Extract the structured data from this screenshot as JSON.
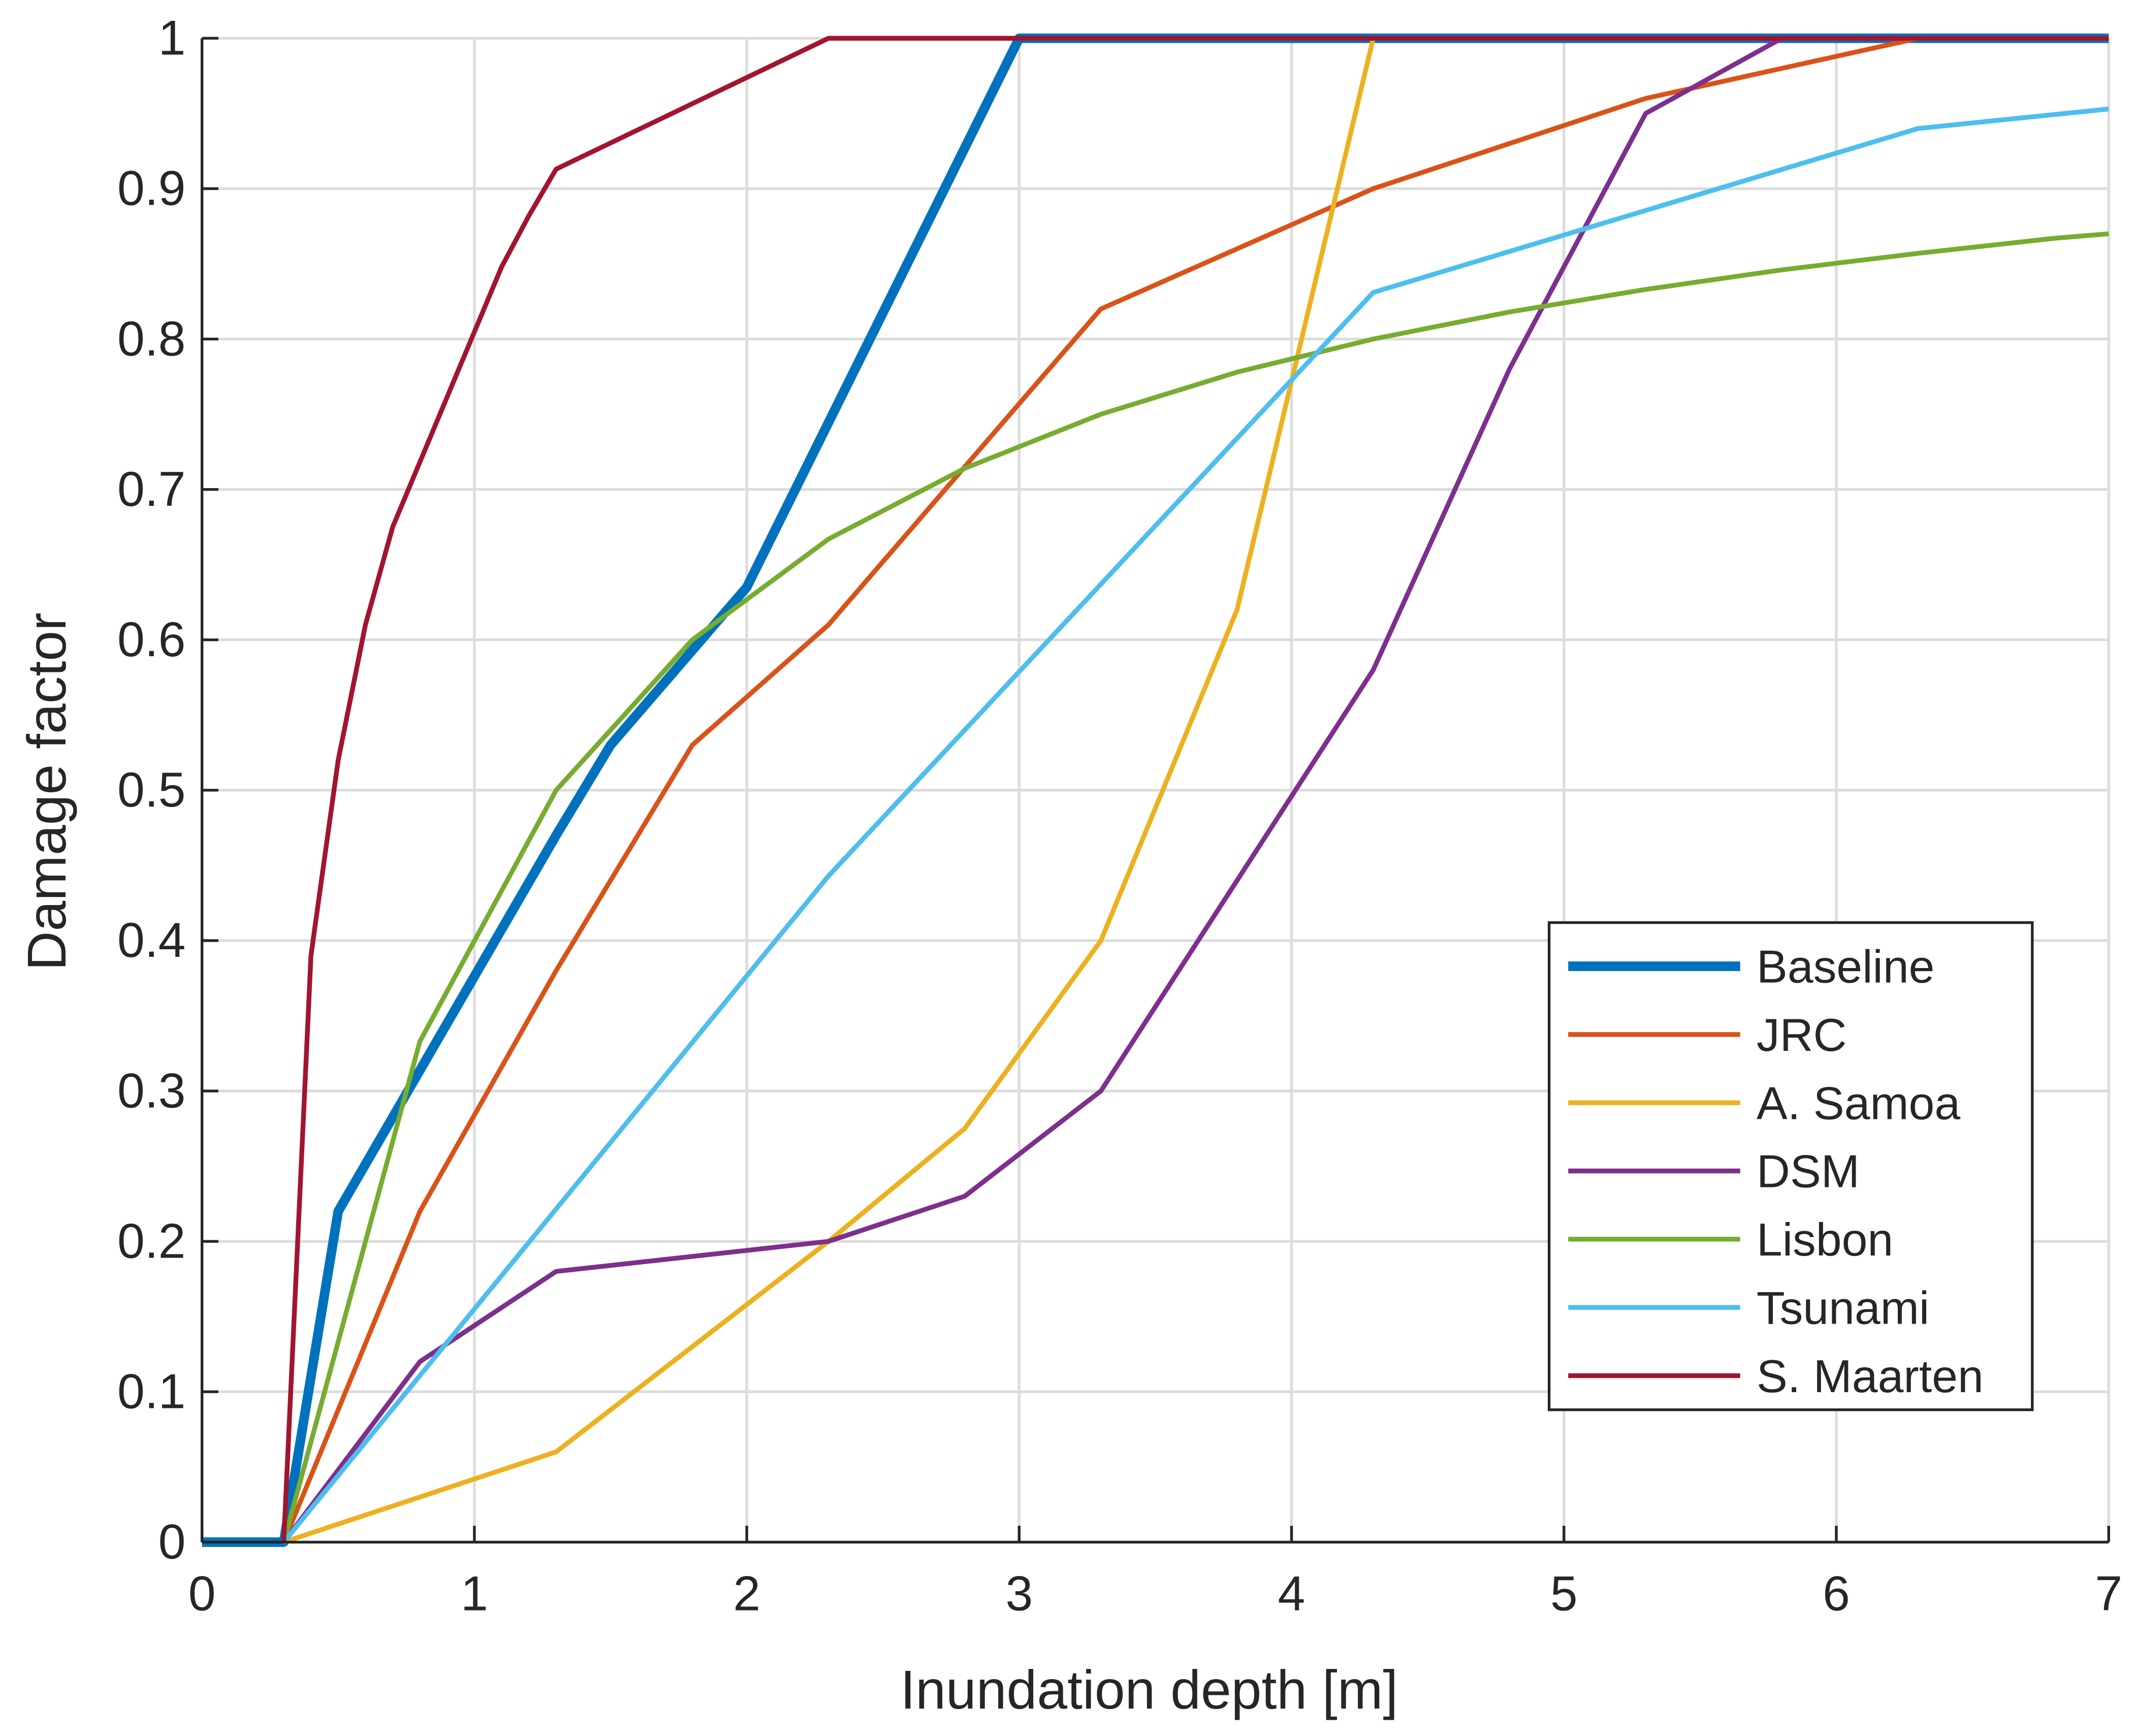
{
  "chart_data": {
    "type": "line",
    "title": "",
    "xlabel": "Inundation depth [m]",
    "ylabel": "Damage factor",
    "xlim": [
      0,
      7
    ],
    "ylim": [
      0,
      1
    ],
    "xticks": [
      "0",
      "1",
      "2",
      "3",
      "4",
      "5",
      "6",
      "7"
    ],
    "yticks": [
      "0",
      "0.1",
      "0.2",
      "0.3",
      "0.4",
      "0.5",
      "0.6",
      "0.7",
      "0.8",
      "0.9",
      "1"
    ],
    "grid": true,
    "legend_position": "bottom-right",
    "series": [
      {
        "name": "Baseline",
        "color": "#0072BD",
        "bold": true,
        "x": [
          0,
          0.3,
          0.5,
          1.3,
          1.5,
          2,
          3,
          7
        ],
        "y": [
          0,
          0,
          0.22,
          0.47,
          0.53,
          0.635,
          1,
          1
        ]
      },
      {
        "name": "JRC",
        "color": "#D95319",
        "x": [
          0.3,
          0.8,
          1.3,
          1.8,
          2.3,
          3.3,
          4.3,
          5.3,
          6.3,
          7
        ],
        "y": [
          0,
          0.22,
          0.38,
          0.53,
          0.61,
          0.82,
          0.9,
          0.96,
          1,
          1
        ]
      },
      {
        "name": "A. Samoa",
        "color": "#EDB120",
        "x": [
          0.3,
          1.3,
          2.3,
          2.8,
          3.3,
          3.8,
          4.3,
          7
        ],
        "y": [
          0,
          0.06,
          0.2,
          0.275,
          0.4,
          0.62,
          1,
          1
        ]
      },
      {
        "name": "DSM",
        "color": "#7E2F8E",
        "x": [
          0.3,
          0.8,
          1.3,
          2.3,
          2.8,
          3.3,
          4.3,
          4.8,
          5.3,
          5.8,
          7
        ],
        "y": [
          0,
          0.12,
          0.18,
          0.2,
          0.23,
          0.3,
          0.58,
          0.78,
          0.95,
          1,
          1
        ]
      },
      {
        "name": "Lisbon",
        "color": "#77AC30",
        "x": [
          0.3,
          0.8,
          1.3,
          1.8,
          2.3,
          2.8,
          3.3,
          3.8,
          4.3,
          4.8,
          5.3,
          5.8,
          6.3,
          6.8,
          7
        ],
        "y": [
          0,
          0.333,
          0.5,
          0.6,
          0.667,
          0.714,
          0.75,
          0.778,
          0.8,
          0.818,
          0.833,
          0.846,
          0.857,
          0.867,
          0.87
        ]
      },
      {
        "name": "Tsunami",
        "color": "#4DBEEE",
        "x": [
          0.3,
          2.3,
          4.3,
          6.3,
          7
        ],
        "y": [
          0,
          0.443,
          0.831,
          0.94,
          0.953
        ]
      },
      {
        "name": "S. Maarten",
        "color": "#A2142F",
        "x": [
          0.3,
          0.4,
          0.5,
          0.6,
          0.7,
          1.1,
          1.2,
          1.3,
          2.3,
          7
        ],
        "y": [
          0,
          0.39,
          0.52,
          0.61,
          0.675,
          0.848,
          0.882,
          0.913,
          1,
          1
        ]
      }
    ]
  }
}
